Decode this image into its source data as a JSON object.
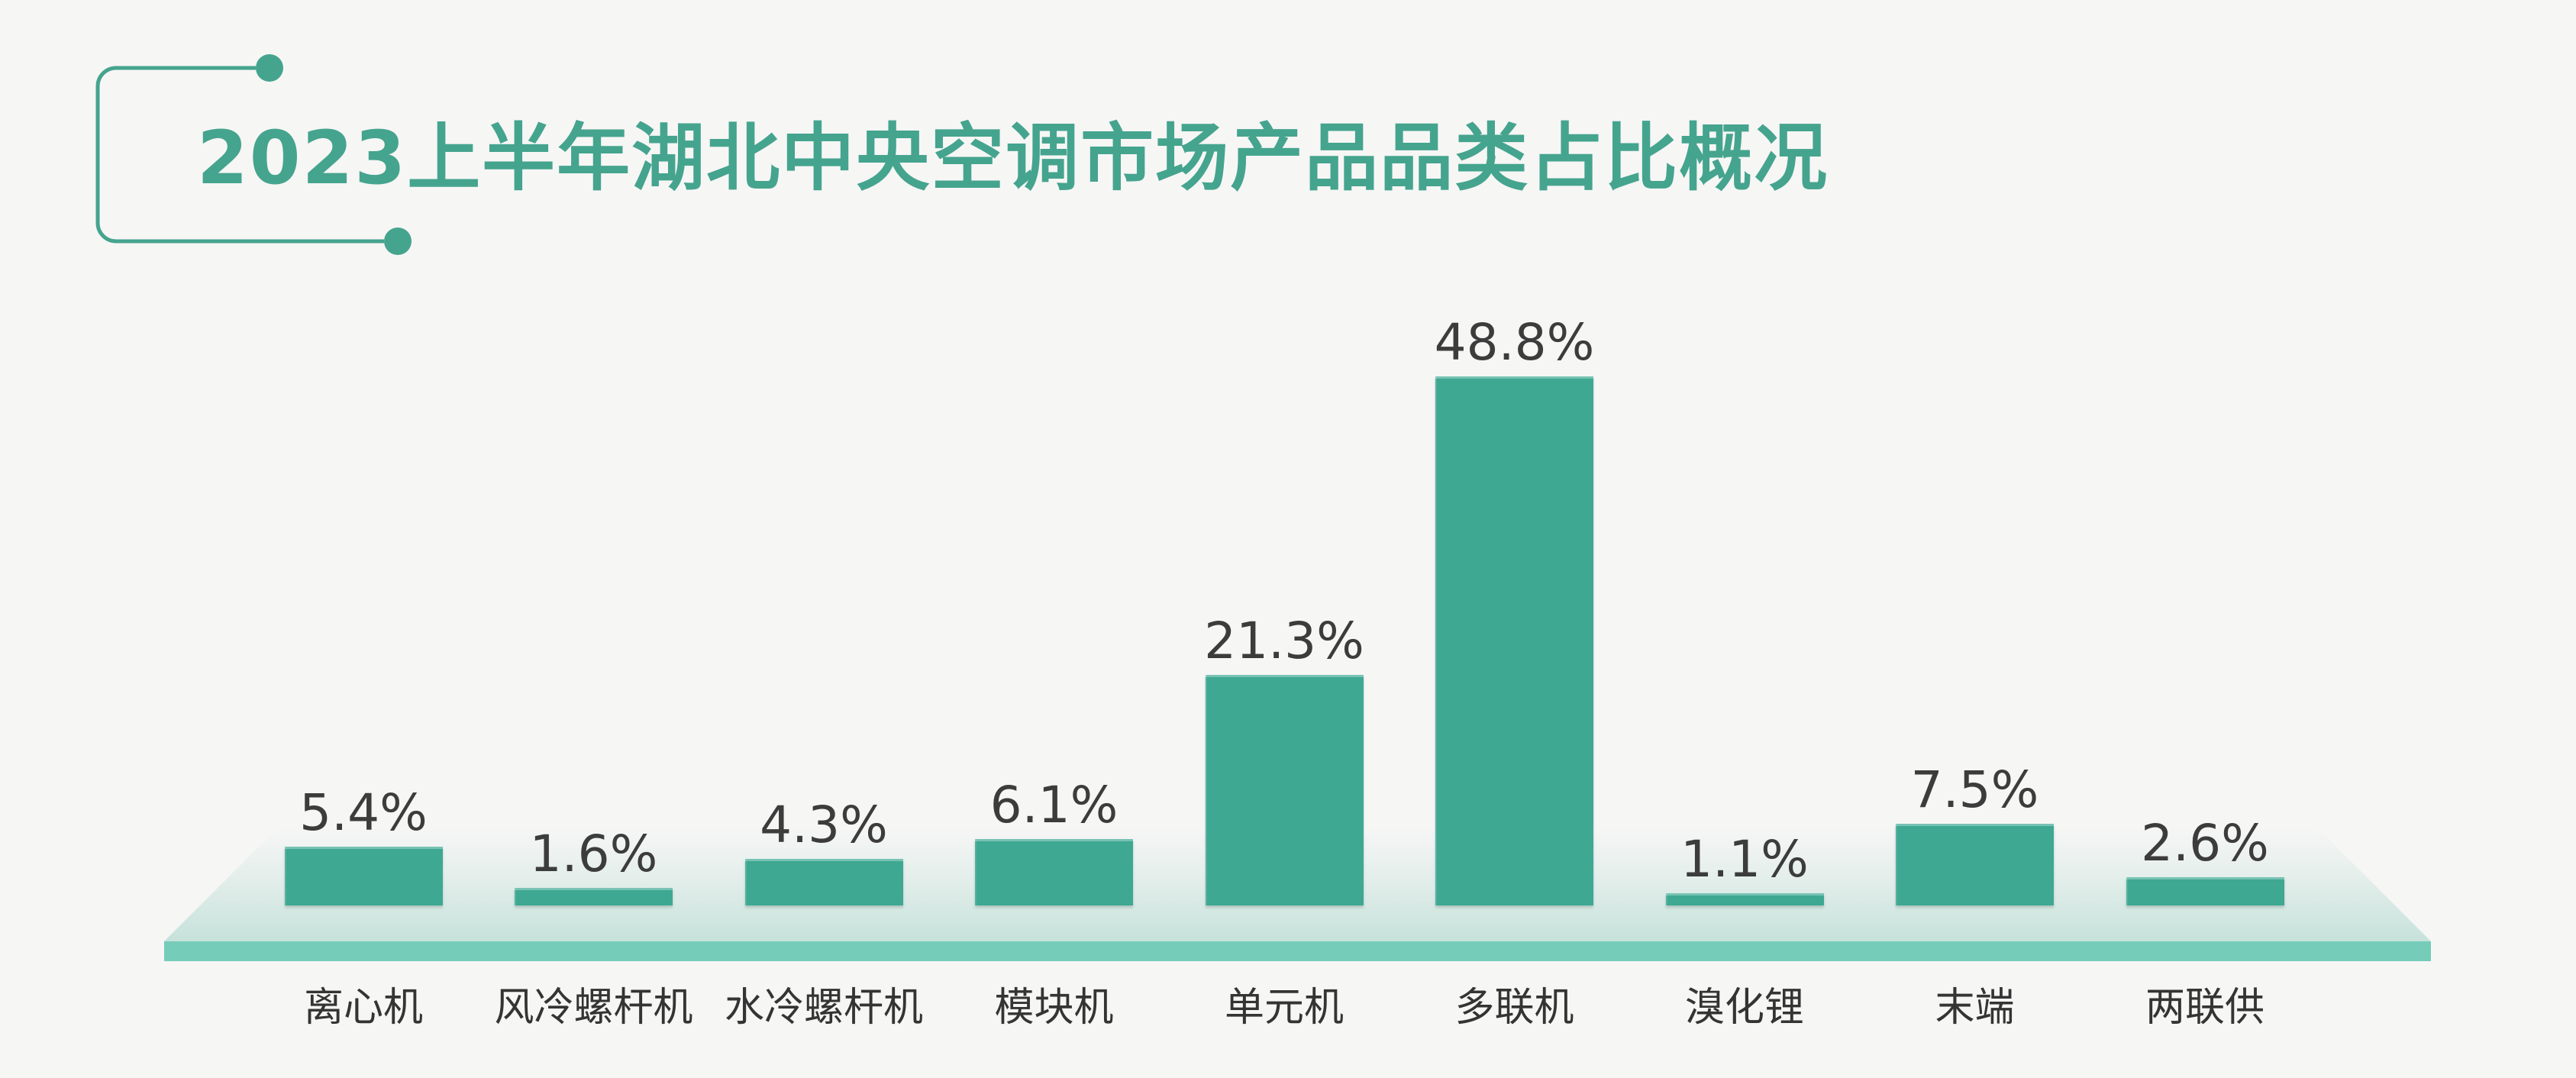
{
  "page": {
    "background_color": "#F6F6F5"
  },
  "header": {
    "title": "2023上半年湖北中央空调市场产品品类占比概况",
    "accent_color": "#45A48E"
  },
  "chart_data": {
    "type": "bar",
    "title": "2023上半年湖北中央空调市场产品品类占比概况",
    "categories": [
      "离心机",
      "风冷螺杆机",
      "水冷螺杆机",
      "模块机",
      "单元机",
      "多联机",
      "溴化锂",
      "末端",
      "两联供"
    ],
    "values": [
      5.4,
      1.6,
      4.3,
      6.1,
      21.3,
      48.8,
      1.1,
      7.5,
      2.6
    ],
    "value_labels": [
      "5.4%",
      "1.6%",
      "4.3%",
      "6.1%",
      "21.3%",
      "48.8%",
      "1.1%",
      "7.5%",
      "2.6%"
    ],
    "unit": "%",
    "ylim": [
      0,
      50
    ],
    "grid": "off",
    "legend": "none",
    "xlabel": "",
    "ylabel": "",
    "bar_color": "#3EA892",
    "platform_front_color": "#74CCB9",
    "value_label_color": "#3C3C3C",
    "category_label_color": "#343434"
  }
}
